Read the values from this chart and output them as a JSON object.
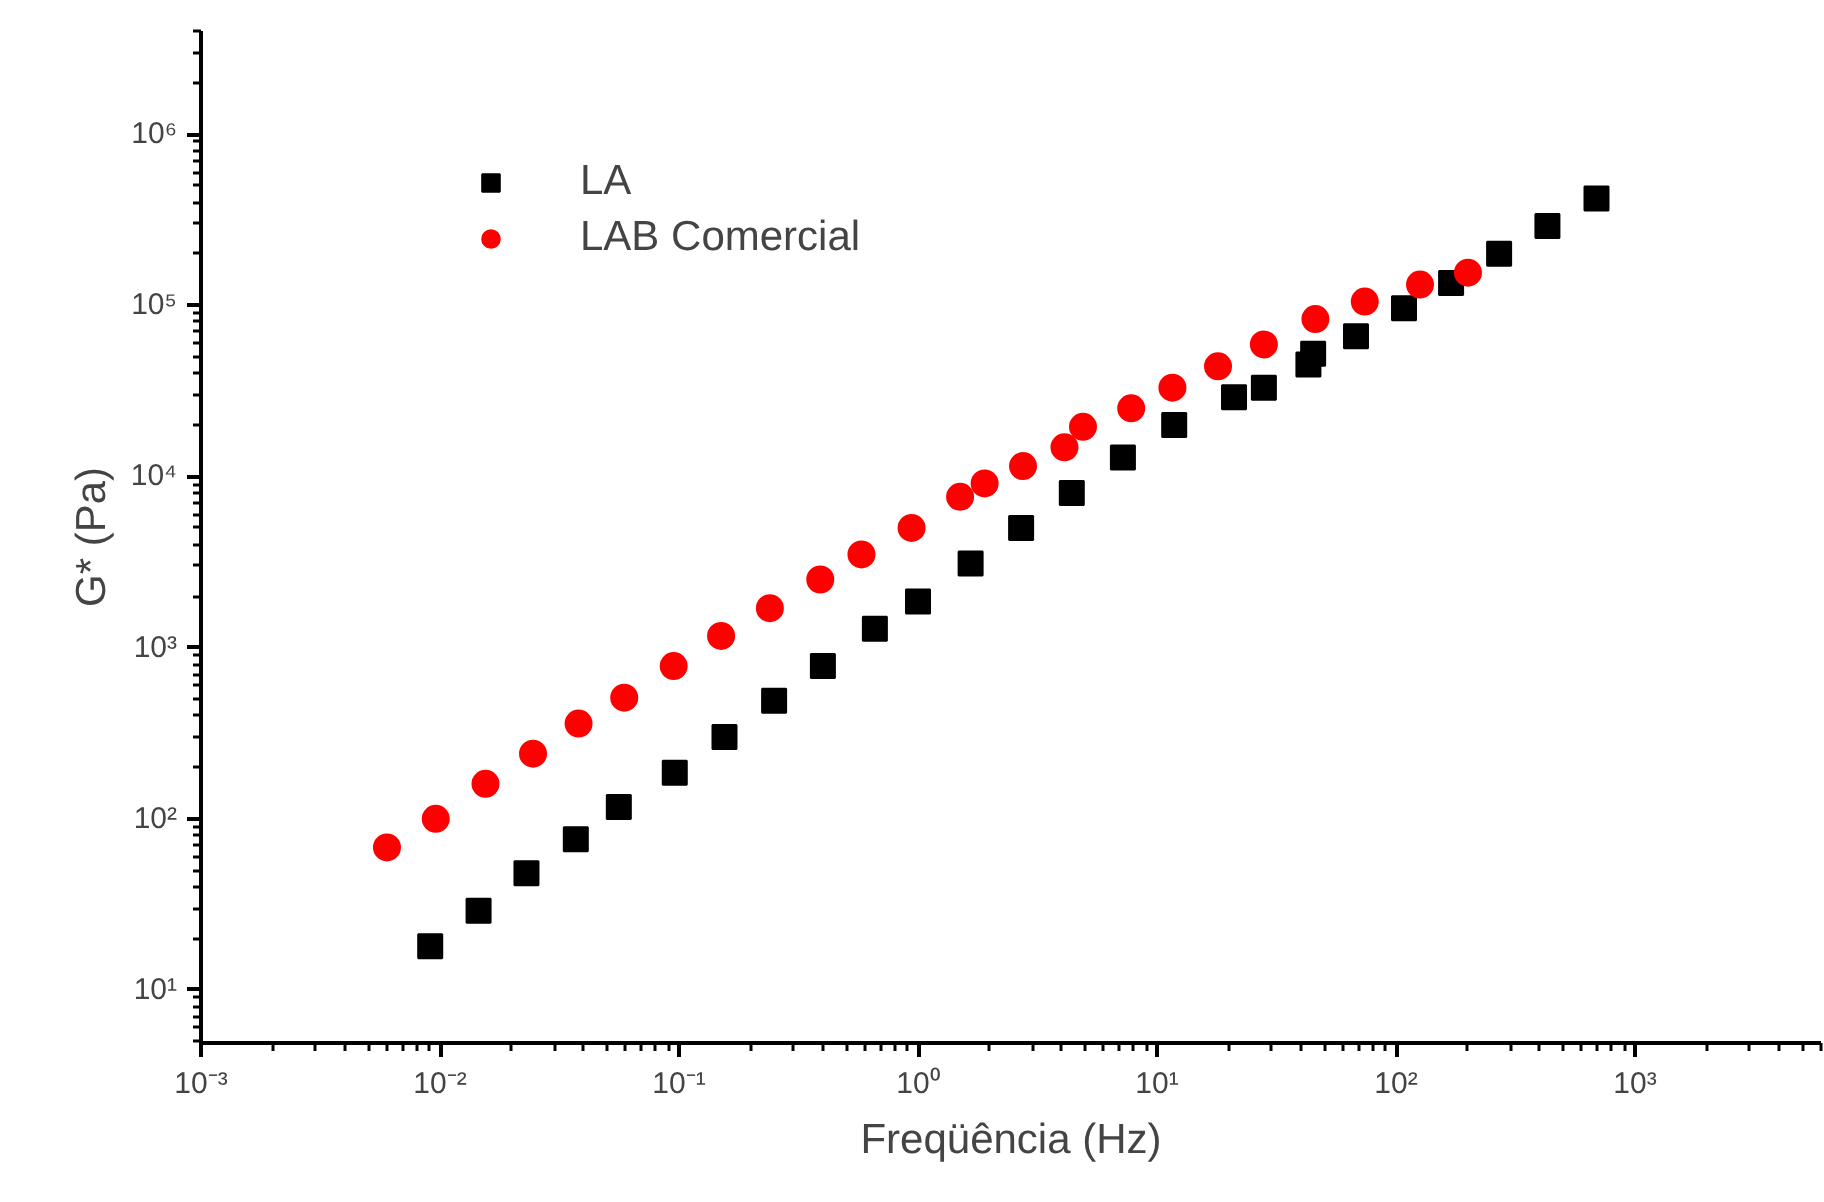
{
  "chart_data": {
    "type": "scatter",
    "xlabel": "Freqüência (Hz)",
    "ylabel": "G* (Pa)",
    "log": "xy",
    "legend": "top left",
    "grid": false,
    "xlim": [
      0.001,
      6000
    ],
    "ylim": [
      4.9,
      4000000
    ],
    "xticks": [
      {
        "value": 0.001,
        "label": "10⁻³"
      },
      {
        "value": 0.01,
        "label": "10⁻²"
      },
      {
        "value": 0.1,
        "label": "10⁻¹"
      },
      {
        "value": 1,
        "label": "10⁰"
      },
      {
        "value": 10,
        "label": "10¹"
      },
      {
        "value": 100,
        "label": "10²"
      },
      {
        "value": 1000,
        "label": "10³"
      }
    ],
    "yticks": [
      {
        "value": 10,
        "label": "10¹"
      },
      {
        "value": 100,
        "label": "10²"
      },
      {
        "value": 1000,
        "label": "10³"
      },
      {
        "value": 10000,
        "label": "10⁴"
      },
      {
        "value": 100000,
        "label": "10⁵"
      },
      {
        "value": 1000000,
        "label": "10⁶"
      }
    ],
    "series": [
      {
        "name": "LA",
        "color": "#000000",
        "marker": "square",
        "x": [
          0.0091,
          0.0145,
          0.023,
          0.037,
          0.056,
          0.096,
          0.155,
          0.25,
          0.4,
          0.66,
          1.0,
          1.66,
          2.7,
          4.4,
          7.2,
          11.8,
          21,
          28,
          43,
          45,
          68,
          108,
          170,
          270,
          430,
          690
        ],
        "values": [
          18,
          29,
          48,
          76,
          117,
          186,
          300,
          490,
          780,
          1290,
          1860,
          3100,
          5000,
          8000,
          12900,
          20000,
          29000,
          33000,
          45000,
          52000,
          66000,
          96000,
          135000,
          200000,
          290000,
          420000
        ]
      },
      {
        "name": "LAB Comercial",
        "color": "#ff0000",
        "marker": "circle",
        "x": [
          0.006,
          0.0096,
          0.0155,
          0.0245,
          0.038,
          0.059,
          0.095,
          0.15,
          0.24,
          0.39,
          0.58,
          0.94,
          1.5,
          1.9,
          2.75,
          4.1,
          4.9,
          7.8,
          11.6,
          18,
          28,
          46,
          74,
          126,
          200
        ],
        "values": [
          68,
          100,
          160,
          240,
          360,
          510,
          780,
          1170,
          1700,
          2500,
          3500,
          5000,
          7600,
          9100,
          11500,
          14800,
          19500,
          25000,
          33000,
          44000,
          59000,
          83000,
          105000,
          132000,
          155000
        ]
      }
    ]
  }
}
